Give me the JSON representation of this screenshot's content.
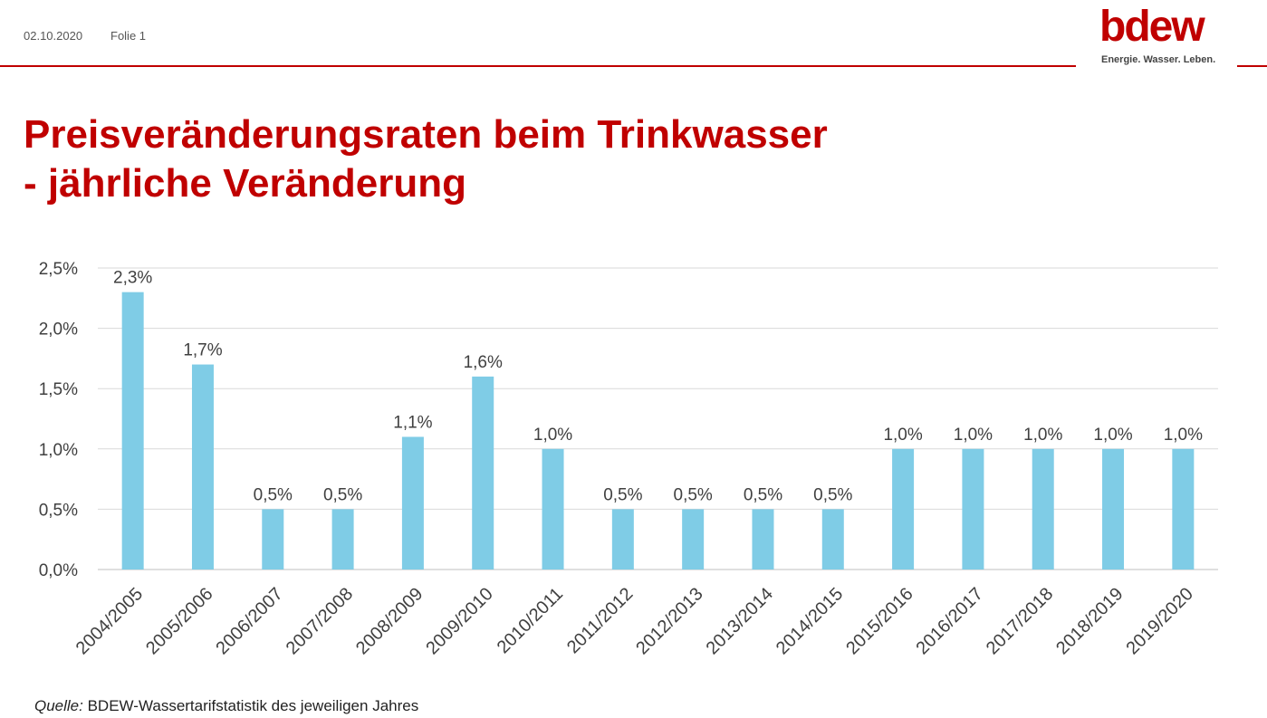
{
  "header": {
    "date": "02.10.2020",
    "slide": "Folie 1"
  },
  "logo": {
    "word": "bdew",
    "tagline": "Energie. Wasser. Leben."
  },
  "title": {
    "line1": "Preisveränderungsraten beim Trinkwasser",
    "line2": "- jährliche Veränderung"
  },
  "source": {
    "label": "Quelle:",
    "text": " BDEW-Wassertarifstatistik des jeweiligen Jahres"
  },
  "colors": {
    "brand": "#c00000",
    "bar": "#7fcce6",
    "grid": "#d9d9d9",
    "text": "#404040"
  },
  "chart_data": {
    "type": "bar",
    "categories": [
      "2004/2005",
      "2005/2006",
      "2006/2007",
      "2007/2008",
      "2008/2009",
      "2009/2010",
      "2010/2011",
      "2011/2012",
      "2012/2013",
      "2013/2014",
      "2014/2015",
      "2015/2016",
      "2016/2017",
      "2017/2018",
      "2018/2019",
      "2019/2020"
    ],
    "values": [
      2.3,
      1.7,
      0.5,
      0.5,
      1.1,
      1.6,
      1.0,
      0.5,
      0.5,
      0.5,
      0.5,
      1.0,
      1.0,
      1.0,
      1.0,
      1.0
    ],
    "data_labels": [
      "2,3%",
      "1,7%",
      "0,5%",
      "0,5%",
      "1,1%",
      "1,6%",
      "1,0%",
      "0,5%",
      "0,5%",
      "0,5%",
      "0,5%",
      "1,0%",
      "1,0%",
      "1,0%",
      "1,0%",
      "1,0%"
    ],
    "yticks": [
      0,
      0.5,
      1.0,
      1.5,
      2.0,
      2.5
    ],
    "ytick_labels": [
      "0,0%",
      "0,5%",
      "1,0%",
      "1,5%",
      "2,0%",
      "2,5%"
    ],
    "ylim": [
      0,
      2.5
    ],
    "grid": true,
    "legend": "none"
  }
}
